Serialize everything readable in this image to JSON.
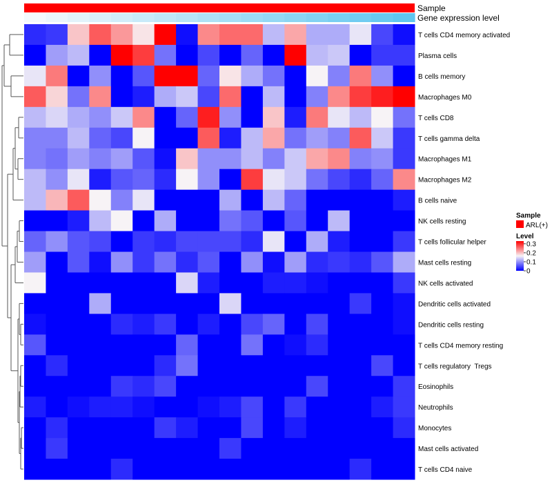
{
  "chart_data": {
    "type": "heatmap",
    "title": "",
    "annotation_tracks": [
      {
        "name": "Sample",
        "label": "Sample",
        "color": "#ff0000"
      },
      {
        "name": "Gene expression level",
        "label": "Gene expression level",
        "gradient_start": "#f4f9fd",
        "gradient_end": "#5fc6ef"
      }
    ],
    "rows": [
      "T cells CD4 memory activated",
      "Plasma cells",
      "B cells memory",
      "Macrophages M0",
      "T cells CD8",
      "T cells gamma delta",
      "Macrophages M1",
      "Macrophages M2",
      "B cells naive",
      "NK cells resting",
      "T cells follicular helper",
      "Mast cells resting",
      "NK cells activated",
      "Dendritic cells activated",
      "Dendritic cells resting",
      "T cells CD4 memory resting",
      "T cells regulatory  Tregs",
      "Eosinophils",
      "Neutrophils",
      "Monocytes",
      "Mast cells activated",
      "T cells CD4 naive"
    ],
    "n_columns": 18,
    "values": [
      [
        0.03,
        0.04,
        0.2,
        0.27,
        0.23,
        0.18,
        0.33,
        0.01,
        0.24,
        0.26,
        0.26,
        0.13,
        0.22,
        0.12,
        0.12,
        0.16,
        0.05,
        0.01
      ],
      [
        0.0,
        0.11,
        0.13,
        0.0,
        0.33,
        0.29,
        0.08,
        0.0,
        0.05,
        0.0,
        0.07,
        0.0,
        0.33,
        0.13,
        0.14,
        0.0,
        0.04,
        0.04
      ],
      [
        0.16,
        0.25,
        0.0,
        0.1,
        0.0,
        0.06,
        0.33,
        0.33,
        0.07,
        0.18,
        0.12,
        0.08,
        0.0,
        0.17,
        0.09,
        0.25,
        0.1,
        0.0
      ],
      [
        0.27,
        0.19,
        0.08,
        0.24,
        0.0,
        0.02,
        0.12,
        0.14,
        0.05,
        0.26,
        0.0,
        0.13,
        0.0,
        0.09,
        0.24,
        0.29,
        0.31,
        0.33
      ],
      [
        0.13,
        0.15,
        0.12,
        0.1,
        0.14,
        0.24,
        0.0,
        0.07,
        0.31,
        0.1,
        0.0,
        0.2,
        0.02,
        0.25,
        0.16,
        0.13,
        0.17,
        0.08
      ],
      [
        0.09,
        0.09,
        0.13,
        0.07,
        0.05,
        0.17,
        0.0,
        0.0,
        0.27,
        0.02,
        0.13,
        0.22,
        0.08,
        0.11,
        0.09,
        0.27,
        0.14,
        0.04
      ],
      [
        0.09,
        0.08,
        0.11,
        0.09,
        0.11,
        0.06,
        0.01,
        0.2,
        0.1,
        0.1,
        0.13,
        0.09,
        0.14,
        0.22,
        0.24,
        0.09,
        0.1,
        0.04
      ],
      [
        0.13,
        0.1,
        0.16,
        0.02,
        0.06,
        0.07,
        0.03,
        0.17,
        0.1,
        0.0,
        0.29,
        0.16,
        0.14,
        0.08,
        0.05,
        0.03,
        0.07,
        0.24
      ],
      [
        0.13,
        0.21,
        0.27,
        0.17,
        0.09,
        0.16,
        0.0,
        0.0,
        0.0,
        0.12,
        0.0,
        0.13,
        0.07,
        0.0,
        0.0,
        0.0,
        0.0,
        0.02
      ],
      [
        0.0,
        0.0,
        0.02,
        0.13,
        0.17,
        0.0,
        0.12,
        0.0,
        0.0,
        0.08,
        0.06,
        0.0,
        0.06,
        0.0,
        0.13,
        0.0,
        0.0,
        0.0
      ],
      [
        0.07,
        0.1,
        0.06,
        0.05,
        0.0,
        0.04,
        0.03,
        0.05,
        0.05,
        0.05,
        0.03,
        0.16,
        0.0,
        0.12,
        0.02,
        0.0,
        0.0,
        0.04
      ],
      [
        0.11,
        0.0,
        0.06,
        0.01,
        0.1,
        0.04,
        0.08,
        0.03,
        0.06,
        0.0,
        0.1,
        0.01,
        0.11,
        0.03,
        0.04,
        0.03,
        0.06,
        0.12
      ],
      [
        0.17,
        0.0,
        0.0,
        0.0,
        0.0,
        0.0,
        0.0,
        0.15,
        0.02,
        0.0,
        0.0,
        0.02,
        0.02,
        0.01,
        0.0,
        0.0,
        0.0,
        0.04
      ],
      [
        0.0,
        0.0,
        0.0,
        0.12,
        0.0,
        0.0,
        0.0,
        0.0,
        0.0,
        0.15,
        0.0,
        0.0,
        0.0,
        0.0,
        0.0,
        0.04,
        0.0,
        0.01
      ],
      [
        0.01,
        0.0,
        0.0,
        0.0,
        0.03,
        0.02,
        0.04,
        0.0,
        0.02,
        0.0,
        0.05,
        0.07,
        0.0,
        0.05,
        0.0,
        0.0,
        0.0,
        0.01
      ],
      [
        0.06,
        0.0,
        0.0,
        0.0,
        0.0,
        0.0,
        0.0,
        0.07,
        0.0,
        0.0,
        0.08,
        0.0,
        0.01,
        0.03,
        0.0,
        0.0,
        0.0,
        0.0
      ],
      [
        0.0,
        0.03,
        0.0,
        0.0,
        0.0,
        0.0,
        0.03,
        0.08,
        0.0,
        0.0,
        0.0,
        0.0,
        0.0,
        0.0,
        0.0,
        0.0,
        0.05,
        0.0
      ],
      [
        0.0,
        0.0,
        0.0,
        0.0,
        0.04,
        0.03,
        0.05,
        0.0,
        0.0,
        0.0,
        0.0,
        0.0,
        0.0,
        0.05,
        0.0,
        0.0,
        0.0,
        0.04
      ],
      [
        0.02,
        0.0,
        0.01,
        0.02,
        0.02,
        0.01,
        0.0,
        0.0,
        0.01,
        0.02,
        0.05,
        0.0,
        0.04,
        0.0,
        0.0,
        0.0,
        0.02,
        0.04
      ],
      [
        0.0,
        0.03,
        0.0,
        0.0,
        0.0,
        0.0,
        0.04,
        0.02,
        0.0,
        0.0,
        0.05,
        0.0,
        0.02,
        0.0,
        0.0,
        0.0,
        0.0,
        0.03
      ],
      [
        0.0,
        0.04,
        0.0,
        0.0,
        0.0,
        0.0,
        0.0,
        0.0,
        0.0,
        0.04,
        0.0,
        0.0,
        0.0,
        0.0,
        0.0,
        0.0,
        0.0,
        0.0
      ],
      [
        0.0,
        0.0,
        0.0,
        0.0,
        0.03,
        0.0,
        0.0,
        0.0,
        0.0,
        0.0,
        0.0,
        0.0,
        0.0,
        0.0,
        0.0,
        0.03,
        0.0,
        0.0
      ]
    ],
    "color_scale": {
      "min": 0,
      "max": 0.33,
      "low_color": "#0000ff",
      "mid_color": "#f7f3f6",
      "high_color": "#ff0000",
      "mid_value": 0.17
    },
    "legend": {
      "sample_title": "Sample",
      "sample_entry": "ARL(+)",
      "level_title": "Level",
      "ticks": [
        "0.3",
        "0.2",
        "0.1",
        "0"
      ],
      "tick_values": [
        0.3,
        0.2,
        0.1,
        0
      ]
    },
    "row_dendrogram": true,
    "column_dendrogram": false
  }
}
